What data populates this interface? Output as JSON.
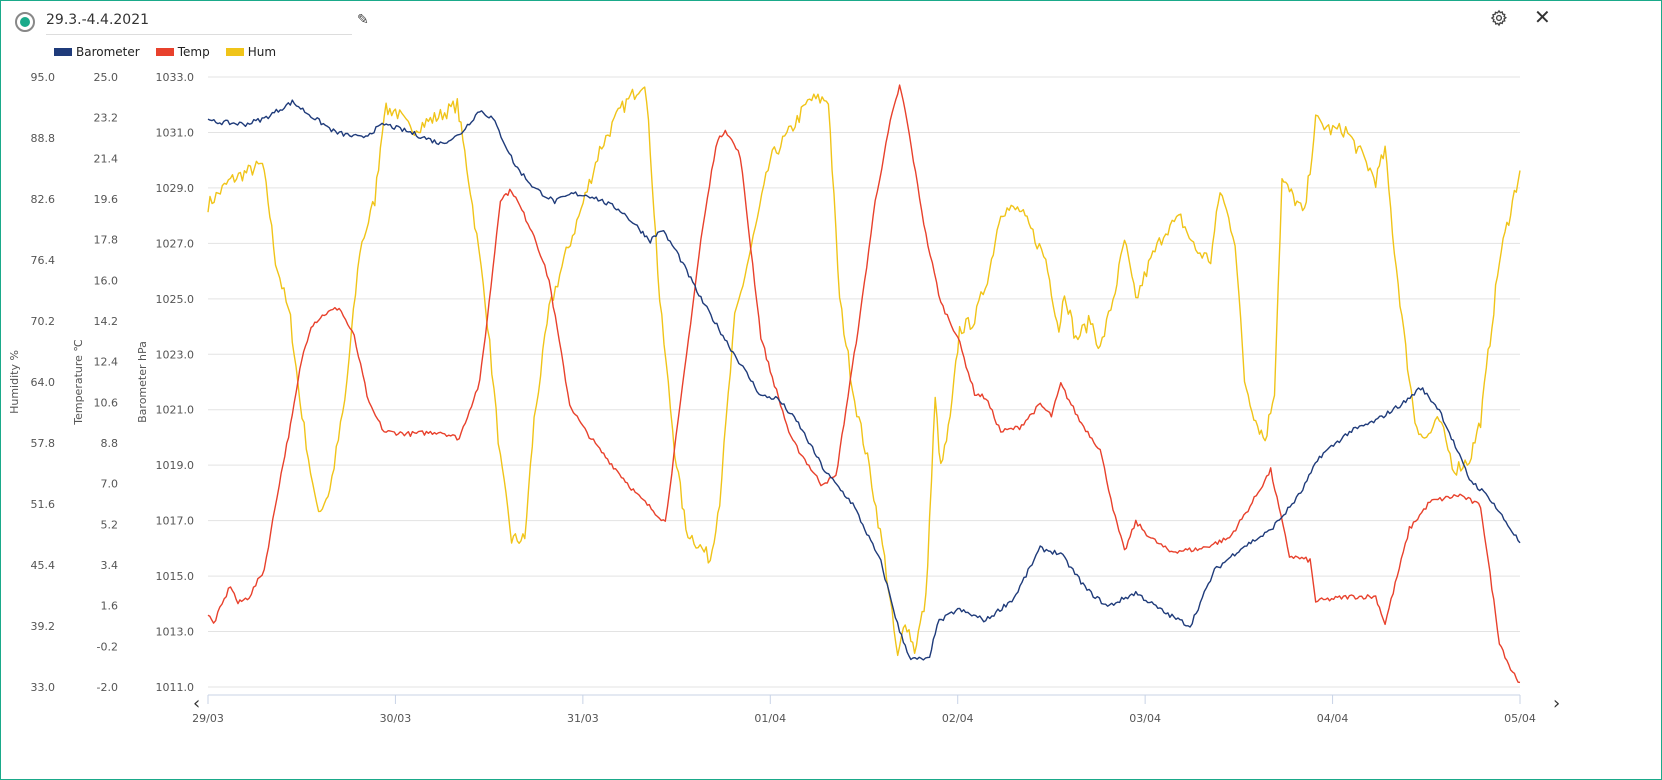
{
  "header": {
    "title": "29.3.-4.4.2021",
    "edit_icon": "pencil-icon",
    "settings_icon": "gear-icon",
    "close_icon": "close-icon",
    "close_glyph": "✕",
    "edit_glyph": "✎"
  },
  "nav": {
    "prev": "‹",
    "next": "›"
  },
  "colors": {
    "border": "#1aaa8a",
    "barometer": "#1f3b7a",
    "temp": "#e8412c",
    "hum": "#f0c419"
  },
  "chart_data": {
    "type": "line",
    "legend": [
      "Barometer",
      "Temp",
      "Hum"
    ],
    "legend_position": "top-left",
    "grid": true,
    "x_tick_labels": [
      "29/03",
      "30/03",
      "31/03",
      "01/04",
      "02/04",
      "03/04",
      "04/04",
      "05/04"
    ],
    "xlim_days": [
      0,
      7
    ],
    "axes": [
      {
        "id": "hum",
        "label": "Humidity %",
        "ylim": [
          33,
          95
        ],
        "ticks": [
          "95.0",
          "88.8",
          "82.6",
          "76.4",
          "70.2",
          "64.0",
          "57.8",
          "51.6",
          "45.4",
          "39.2",
          "33.0"
        ]
      },
      {
        "id": "temp",
        "label": "Temperature ℃",
        "ylim": [
          -2,
          25
        ],
        "ticks": [
          "25.0",
          "23.2",
          "21.4",
          "19.6",
          "17.8",
          "16.0",
          "14.2",
          "12.4",
          "10.6",
          "8.8",
          "7.0",
          "5.2",
          "3.4",
          "1.6",
          "-0.2",
          "-2.0"
        ]
      },
      {
        "id": "baro",
        "label": "Barometer hPa",
        "ylim": [
          1011,
          1033
        ],
        "ticks": [
          "1033.0",
          "1031.0",
          "1029.0",
          "1027.0",
          "1025.0",
          "1023.0",
          "1021.0",
          "1019.0",
          "1017.0",
          "1015.0",
          "1013.0",
          "1011.0"
        ]
      }
    ],
    "series": [
      {
        "name": "Barometer",
        "axis": "baro",
        "color": "#1f3b7a",
        "points": [
          [
            0,
            1031.4
          ],
          [
            0.2,
            1031.3
          ],
          [
            0.3,
            1031.5
          ],
          [
            0.45,
            1032.1
          ],
          [
            0.55,
            1031.6
          ],
          [
            0.68,
            1031.0
          ],
          [
            0.82,
            1030.8
          ],
          [
            0.94,
            1031.3
          ],
          [
            1.08,
            1031.0
          ],
          [
            1.24,
            1030.6
          ],
          [
            1.34,
            1030.9
          ],
          [
            1.45,
            1031.8
          ],
          [
            1.52,
            1031.5
          ],
          [
            1.64,
            1029.8
          ],
          [
            1.74,
            1029.0
          ],
          [
            1.85,
            1028.5
          ],
          [
            1.95,
            1028.8
          ],
          [
            2.05,
            1028.7
          ],
          [
            2.2,
            1028.2
          ],
          [
            2.29,
            1027.6
          ],
          [
            2.36,
            1027.1
          ],
          [
            2.42,
            1027.5
          ],
          [
            2.5,
            1026.7
          ],
          [
            2.63,
            1025.0
          ],
          [
            2.79,
            1023.2
          ],
          [
            2.95,
            1021.5
          ],
          [
            3.04,
            1021.4
          ],
          [
            3.15,
            1020.5
          ],
          [
            3.29,
            1018.8
          ],
          [
            3.44,
            1017.6
          ],
          [
            3.59,
            1015.5
          ],
          [
            3.69,
            1013.0
          ],
          [
            3.75,
            1012.0
          ],
          [
            3.85,
            1012.0
          ],
          [
            3.89,
            1013.3
          ],
          [
            4.0,
            1013.8
          ],
          [
            4.15,
            1013.4
          ],
          [
            4.3,
            1014.2
          ],
          [
            4.44,
            1016.0
          ],
          [
            4.55,
            1015.8
          ],
          [
            4.69,
            1014.5
          ],
          [
            4.8,
            1013.9
          ],
          [
            4.95,
            1014.4
          ],
          [
            5.1,
            1013.7
          ],
          [
            5.24,
            1013.2
          ],
          [
            5.37,
            1015.2
          ],
          [
            5.51,
            1016.0
          ],
          [
            5.66,
            1016.6
          ],
          [
            5.75,
            1017.3
          ],
          [
            5.83,
            1018.0
          ],
          [
            5.93,
            1019.3
          ],
          [
            6.09,
            1020.2
          ],
          [
            6.23,
            1020.6
          ],
          [
            6.39,
            1021.3
          ],
          [
            6.47,
            1021.8
          ],
          [
            6.57,
            1021.0
          ],
          [
            6.73,
            1018.5
          ],
          [
            6.84,
            1017.8
          ],
          [
            7,
            1016.2
          ]
        ]
      },
      {
        "name": "Temp",
        "axis": "temp",
        "color": "#e8412c",
        "points": [
          [
            0,
            1.2
          ],
          [
            0.03,
            0.8
          ],
          [
            0.12,
            2.5
          ],
          [
            0.16,
            1.7
          ],
          [
            0.22,
            2.0
          ],
          [
            0.3,
            3.2
          ],
          [
            0.38,
            7
          ],
          [
            0.45,
            10
          ],
          [
            0.5,
            12.5
          ],
          [
            0.55,
            14
          ],
          [
            0.62,
            14.5
          ],
          [
            0.7,
            14.8
          ],
          [
            0.78,
            13.5
          ],
          [
            0.86,
            10.5
          ],
          [
            0.94,
            9.3
          ],
          [
            1.08,
            9.2
          ],
          [
            1.24,
            9.3
          ],
          [
            1.34,
            9.0
          ],
          [
            1.45,
            11.5
          ],
          [
            1.5,
            15
          ],
          [
            1.56,
            19.6
          ],
          [
            1.62,
            20.0
          ],
          [
            1.74,
            18.0
          ],
          [
            1.82,
            16
          ],
          [
            1.93,
            10.5
          ],
          [
            2.0,
            9.5
          ],
          [
            2.09,
            8.5
          ],
          [
            2.29,
            6.5
          ],
          [
            2.44,
            5.3
          ],
          [
            2.52,
            10.5
          ],
          [
            2.63,
            17.8
          ],
          [
            2.71,
            22.0
          ],
          [
            2.76,
            22.7
          ],
          [
            2.84,
            21.5
          ],
          [
            2.95,
            13.5
          ],
          [
            3.0,
            12.0
          ],
          [
            3.11,
            9.0
          ],
          [
            3.27,
            7.0
          ],
          [
            3.35,
            7.3
          ],
          [
            3.48,
            14.5
          ],
          [
            3.56,
            19.5
          ],
          [
            3.64,
            23.0
          ],
          [
            3.69,
            24.6
          ],
          [
            3.72,
            23.5
          ],
          [
            3.83,
            18.0
          ],
          [
            3.91,
            15.0
          ],
          [
            4.0,
            13.5
          ],
          [
            4.09,
            11.0
          ],
          [
            4.15,
            10.8
          ],
          [
            4.23,
            9.3
          ],
          [
            4.33,
            9.5
          ],
          [
            4.44,
            10.5
          ],
          [
            4.5,
            10.0
          ],
          [
            4.55,
            11.4
          ],
          [
            4.65,
            9.8
          ],
          [
            4.76,
            8.5
          ],
          [
            4.84,
            5.5
          ],
          [
            4.89,
            4.0
          ],
          [
            4.95,
            5.3
          ],
          [
            5.03,
            4.6
          ],
          [
            5.13,
            4.0
          ],
          [
            5.29,
            4.1
          ],
          [
            5.45,
            4.6
          ],
          [
            5.56,
            6.0
          ],
          [
            5.67,
            7.6
          ],
          [
            5.77,
            3.8
          ],
          [
            5.88,
            3.6
          ],
          [
            5.91,
            1.8
          ],
          [
            6.09,
            2.0
          ],
          [
            6.23,
            2.0
          ],
          [
            6.28,
            0.8
          ],
          [
            6.41,
            5.0
          ],
          [
            6.52,
            6.2
          ],
          [
            6.68,
            6.5
          ],
          [
            6.79,
            6.0
          ],
          [
            6.84,
            3.0
          ],
          [
            6.89,
            0.0
          ],
          [
            6.95,
            -1.2
          ],
          [
            7,
            -1.8
          ]
        ]
      },
      {
        "name": "Hum",
        "axis": "hum",
        "color": "#f0c419",
        "points": [
          [
            0,
            82.0
          ],
          [
            0.12,
            84.5
          ],
          [
            0.29,
            86.1
          ],
          [
            0.32,
            82.5
          ],
          [
            0.36,
            76.4
          ],
          [
            0.44,
            70.3
          ],
          [
            0.49,
            62.2
          ],
          [
            0.57,
            52
          ],
          [
            0.6,
            51
          ],
          [
            0.65,
            53
          ],
          [
            0.73,
            62
          ],
          [
            0.81,
            77.4
          ],
          [
            0.89,
            82.5
          ],
          [
            0.94,
            91.6
          ],
          [
            1.0,
            91.6
          ],
          [
            1.08,
            89.6
          ],
          [
            1.24,
            91.1
          ],
          [
            1.33,
            92.2
          ],
          [
            1.4,
            83.5
          ],
          [
            1.48,
            72.3
          ],
          [
            1.56,
            56.1
          ],
          [
            1.62,
            48
          ],
          [
            1.69,
            48
          ],
          [
            1.74,
            60.1
          ],
          [
            1.82,
            71.3
          ],
          [
            1.9,
            76.4
          ],
          [
            1.99,
            81.5
          ],
          [
            2.09,
            87.6
          ],
          [
            2.2,
            91.6
          ],
          [
            2.33,
            94.7
          ],
          [
            2.36,
            87.6
          ],
          [
            2.41,
            72.3
          ],
          [
            2.49,
            57.1
          ],
          [
            2.55,
            49
          ],
          [
            2.68,
            46
          ],
          [
            2.73,
            52
          ],
          [
            2.81,
            70.3
          ],
          [
            2.92,
            79.5
          ],
          [
            3.0,
            86.6
          ],
          [
            3.11,
            89.6
          ],
          [
            3.21,
            92.7
          ],
          [
            3.31,
            92.7
          ],
          [
            3.37,
            72.3
          ],
          [
            3.45,
            62.2
          ],
          [
            3.53,
            55.1
          ],
          [
            3.61,
            46
          ],
          [
            3.68,
            35.8
          ],
          [
            3.72,
            39.9
          ],
          [
            3.77,
            36.8
          ],
          [
            3.83,
            41.9
          ],
          [
            3.88,
            62.2
          ],
          [
            3.91,
            55.1
          ],
          [
            3.96,
            60.1
          ],
          [
            4.01,
            69.3
          ],
          [
            4.09,
            70.3
          ],
          [
            4.17,
            75.4
          ],
          [
            4.23,
            81.5
          ],
          [
            4.33,
            81.5
          ],
          [
            4.39,
            79.5
          ],
          [
            4.47,
            76.4
          ],
          [
            4.54,
            69.3
          ],
          [
            4.57,
            73.3
          ],
          [
            4.63,
            68.3
          ],
          [
            4.71,
            70.3
          ],
          [
            4.76,
            67.3
          ],
          [
            4.84,
            73.3
          ],
          [
            4.89,
            78.4
          ],
          [
            4.95,
            72.3
          ],
          [
            5.03,
            76.4
          ],
          [
            5.11,
            79.5
          ],
          [
            5.19,
            80.6
          ],
          [
            5.27,
            77.4
          ],
          [
            5.35,
            76.4
          ],
          [
            5.4,
            83.5
          ],
          [
            5.48,
            78.4
          ],
          [
            5.53,
            64.2
          ],
          [
            5.59,
            60.1
          ],
          [
            5.64,
            58.1
          ],
          [
            5.69,
            63.2
          ],
          [
            5.73,
            84.5
          ],
          [
            5.8,
            82.5
          ],
          [
            5.85,
            81.0
          ],
          [
            5.91,
            90.6
          ],
          [
            5.99,
            89.6
          ],
          [
            6.07,
            89.6
          ],
          [
            6.17,
            86.6
          ],
          [
            6.23,
            84.5
          ],
          [
            6.28,
            87.6
          ],
          [
            6.33,
            77.4
          ],
          [
            6.39,
            67.3
          ],
          [
            6.44,
            60.1
          ],
          [
            6.49,
            58.1
          ],
          [
            6.57,
            60.1
          ],
          [
            6.65,
            55.1
          ],
          [
            6.73,
            56.1
          ],
          [
            6.79,
            60.1
          ],
          [
            6.84,
            68.3
          ],
          [
            6.89,
            76.4
          ],
          [
            6.95,
            81.5
          ],
          [
            7,
            85.5
          ]
        ]
      }
    ]
  }
}
